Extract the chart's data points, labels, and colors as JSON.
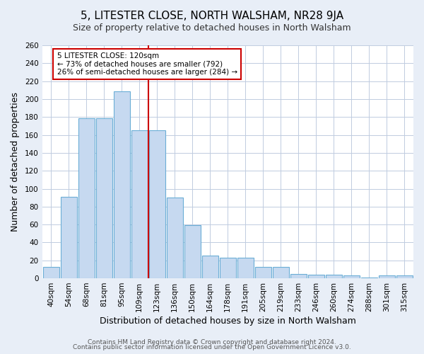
{
  "title": "5, LITESTER CLOSE, NORTH WALSHAM, NR28 9JA",
  "subtitle": "Size of property relative to detached houses in North Walsham",
  "xlabel": "Distribution of detached houses by size in North Walsham",
  "ylabel": "Number of detached properties",
  "categories": [
    "40sqm",
    "54sqm",
    "68sqm",
    "81sqm",
    "95sqm",
    "109sqm",
    "123sqm",
    "136sqm",
    "150sqm",
    "164sqm",
    "178sqm",
    "191sqm",
    "205sqm",
    "219sqm",
    "233sqm",
    "246sqm",
    "260sqm",
    "274sqm",
    "288sqm",
    "301sqm",
    "315sqm"
  ],
  "values": [
    13,
    91,
    179,
    179,
    209,
    165,
    165,
    90,
    59,
    25,
    23,
    23,
    13,
    13,
    5,
    4,
    4,
    3,
    1,
    3,
    3
  ],
  "bar_color": "#c6d9f0",
  "bar_edge_color": "#6baed6",
  "highlight_index": 6,
  "highlight_line_color": "#cc0000",
  "annotation_title": "5 LITESTER CLOSE: 120sqm",
  "annotation_line1": "← 73% of detached houses are smaller (792)",
  "annotation_line2": "26% of semi-detached houses are larger (284) →",
  "annotation_box_color": "#ffffff",
  "annotation_box_edge": "#cc0000",
  "ylim": [
    0,
    260
  ],
  "yticks": [
    0,
    20,
    40,
    60,
    80,
    100,
    120,
    140,
    160,
    180,
    200,
    220,
    240,
    260
  ],
  "footer1": "Contains HM Land Registry data © Crown copyright and database right 2024.",
  "footer2": "Contains public sector information licensed under the Open Government Licence v3.0.",
  "bg_color": "#e8eef7",
  "plot_bg_color": "#ffffff",
  "title_fontsize": 11,
  "subtitle_fontsize": 9,
  "axis_label_fontsize": 9,
  "tick_fontsize": 7.5,
  "footer_fontsize": 6.5
}
